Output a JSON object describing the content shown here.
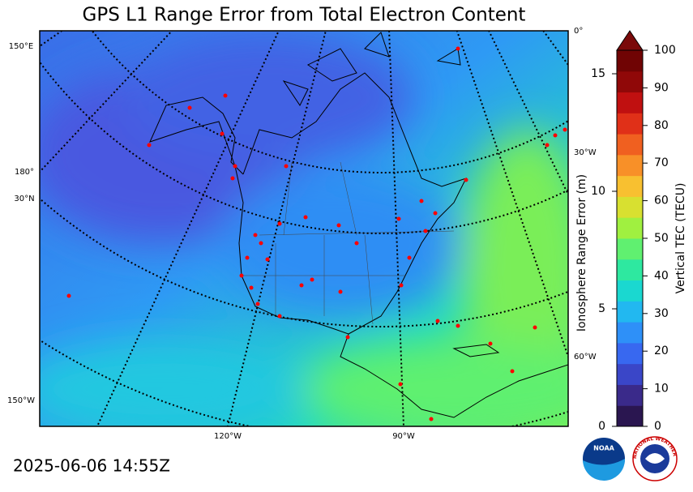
{
  "header": {
    "title": "GPS L1 Range Error from Total Electron Content",
    "timestamp": "2025-06-06 14:55Z"
  },
  "map": {
    "graticule_labels": [
      "150°E",
      "180°",
      "30°N",
      "150°W",
      "0°",
      "30°W",
      "60°W",
      "120°W",
      "90°W"
    ]
  },
  "colorbar": {
    "label": "Vertical TEC (TECU)",
    "lim": [
      0,
      100
    ],
    "ticks": [
      0,
      10,
      20,
      30,
      40,
      50,
      60,
      70,
      80,
      90,
      100
    ],
    "colors": [
      "#2a1650",
      "#3a2a8a",
      "#3a46c8",
      "#3868f0",
      "#2e90f8",
      "#22b8f0",
      "#1ad8d0",
      "#2ee8a0",
      "#60f070",
      "#a0f040",
      "#d8e030",
      "#f8c030",
      "#f89028",
      "#f06020",
      "#e03018",
      "#c01010",
      "#900808",
      "#700404"
    ],
    "extend_color": "#7a0a0a",
    "secondary_label": "Ionosphere Range Error (m)",
    "secondary_lim": [
      0,
      16
    ],
    "secondary_ticks": [
      0,
      5,
      10,
      15
    ]
  },
  "logos": {
    "noaa": "NOAA",
    "nws": "NATIONAL WEATHER SERVICE"
  }
}
